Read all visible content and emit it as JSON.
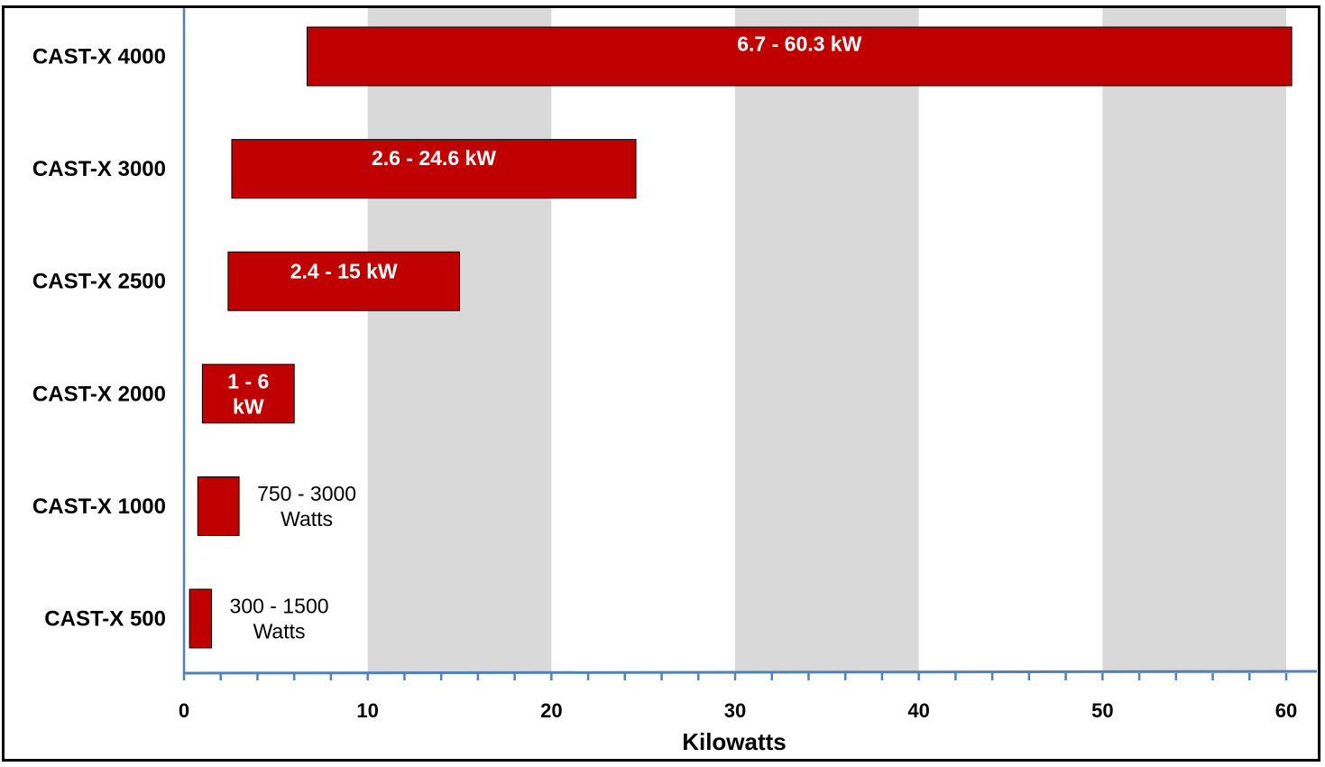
{
  "chart_data": {
    "type": "bar",
    "orientation": "horizontal",
    "style": "floating-range",
    "categories": [
      "CAST-X 4000",
      "CAST-X 3000",
      "CAST-X 2500",
      "CAST-X 2000",
      "CAST-X 1000",
      "CAST-X 500"
    ],
    "ranges": [
      {
        "category": "CAST-X 4000",
        "min": 6.7,
        "max": 60.3,
        "label": [
          "6.7  -  60.3 kW"
        ],
        "label_position": "inside"
      },
      {
        "category": "CAST-X 3000",
        "min": 2.6,
        "max": 24.6,
        "label": [
          "2.6  -  24.6 kW"
        ],
        "label_position": "inside"
      },
      {
        "category": "CAST-X 2500",
        "min": 2.4,
        "max": 15,
        "label": [
          "2.4  -  15 kW"
        ],
        "label_position": "inside"
      },
      {
        "category": "CAST-X 2000",
        "min": 1,
        "max": 6,
        "label": [
          "1 - 6",
          "kW"
        ],
        "label_position": "inside"
      },
      {
        "category": "CAST-X 1000",
        "min": 0.75,
        "max": 3,
        "label": [
          "750 - 3000",
          "Watts"
        ],
        "label_position": "outside"
      },
      {
        "category": "CAST-X 500",
        "min": 0.3,
        "max": 1.5,
        "label": [
          "300 - 1500",
          "Watts"
        ],
        "label_position": "outside"
      }
    ],
    "xlabel": "Kilowatts",
    "ylabel": "",
    "title": "",
    "xlim": [
      0,
      60
    ],
    "xticks": [
      0,
      10,
      20,
      30,
      40,
      50,
      60
    ],
    "bar_color": "#c00000",
    "band_color": "#d9d9d9",
    "axis_color": "#4f81bd",
    "alternating_bands": true,
    "legend": "none"
  }
}
